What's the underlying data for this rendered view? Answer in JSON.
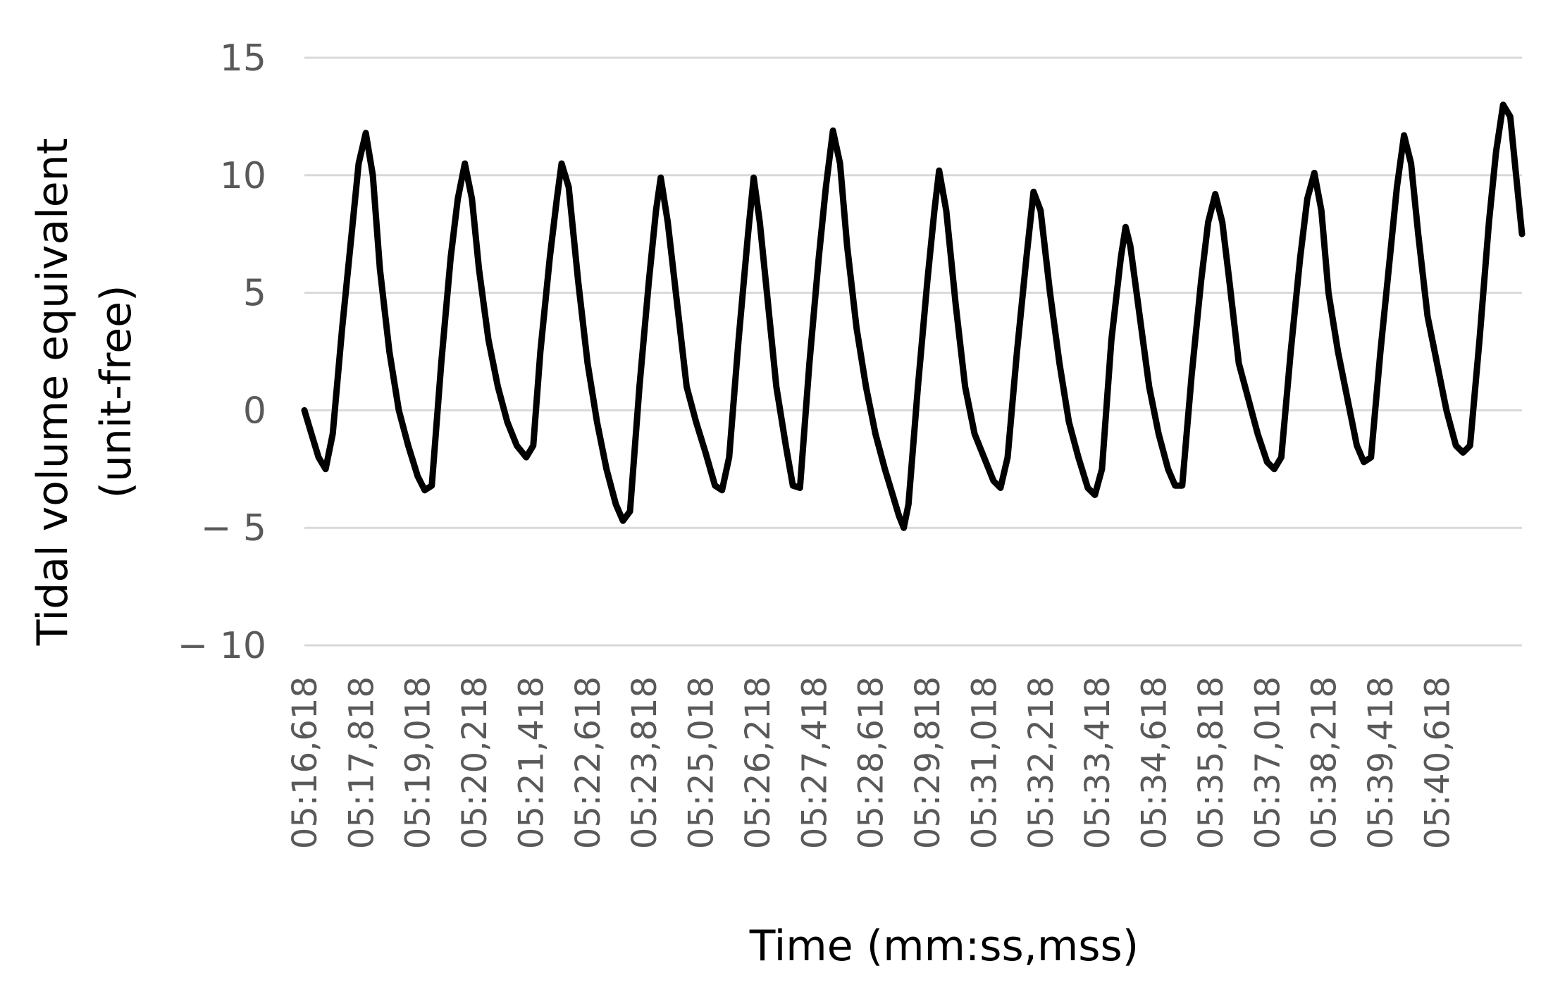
{
  "chart_data": {
    "type": "line",
    "title": "",
    "xlabel": "Time (mm:ss,mss)",
    "ylabel": "Tidal volume equivalent",
    "ylabel_line2": "(unit-free)",
    "ylim": [
      -10,
      15
    ],
    "yticks": [
      15,
      10,
      5,
      0,
      -5,
      -10
    ],
    "ytick_labels": [
      "15",
      "10",
      "5",
      "0",
      "− 5",
      "− 10"
    ],
    "xlim": [
      0,
      25.8
    ],
    "x_categories": [
      "05:16,618",
      "05:17,818",
      "05:19,018",
      "05:20,218",
      "05:21,418",
      "05:22,618",
      "05:23,818",
      "05:25,018",
      "05:26,218",
      "05:27,418",
      "05:28,618",
      "05:29,818",
      "05:31,018",
      "05:32,218",
      "05:33,418",
      "05:34,618",
      "05:35,818",
      "05:37,018",
      "05:38,218",
      "05:39,418",
      "05:40,618"
    ],
    "x_category_step": 1.2,
    "grid": true,
    "line_color": "#000000",
    "grid_color": "#d9d9d9",
    "series": [
      {
        "name": "",
        "points": [
          [
            0.0,
            0
          ],
          [
            0.15,
            -1.0
          ],
          [
            0.3,
            -2.0
          ],
          [
            0.45,
            -2.5
          ],
          [
            0.6,
            -1.0
          ],
          [
            0.8,
            3.5
          ],
          [
            1.0,
            7.5
          ],
          [
            1.15,
            10.5
          ],
          [
            1.3,
            11.8
          ],
          [
            1.45,
            10.0
          ],
          [
            1.6,
            6.0
          ],
          [
            1.8,
            2.5
          ],
          [
            2.0,
            0.0
          ],
          [
            2.2,
            -1.5
          ],
          [
            2.4,
            -2.8
          ],
          [
            2.55,
            -3.4
          ],
          [
            2.7,
            -3.2
          ],
          [
            2.9,
            2.0
          ],
          [
            3.1,
            6.5
          ],
          [
            3.25,
            9.0
          ],
          [
            3.4,
            10.5
          ],
          [
            3.55,
            9.0
          ],
          [
            3.7,
            6.0
          ],
          [
            3.9,
            3.0
          ],
          [
            4.1,
            1.0
          ],
          [
            4.3,
            -0.5
          ],
          [
            4.5,
            -1.5
          ],
          [
            4.7,
            -2.0
          ],
          [
            4.85,
            -1.5
          ],
          [
            5.0,
            2.5
          ],
          [
            5.2,
            6.5
          ],
          [
            5.35,
            9.0
          ],
          [
            5.45,
            10.5
          ],
          [
            5.6,
            9.5
          ],
          [
            5.8,
            5.5
          ],
          [
            6.0,
            2.0
          ],
          [
            6.2,
            -0.5
          ],
          [
            6.4,
            -2.5
          ],
          [
            6.6,
            -4.0
          ],
          [
            6.75,
            -4.7
          ],
          [
            6.9,
            -4.3
          ],
          [
            7.1,
            1.0
          ],
          [
            7.3,
            5.5
          ],
          [
            7.45,
            8.5
          ],
          [
            7.55,
            9.9
          ],
          [
            7.7,
            8.0
          ],
          [
            7.9,
            4.5
          ],
          [
            8.1,
            1.0
          ],
          [
            8.3,
            -0.5
          ],
          [
            8.5,
            -1.8
          ],
          [
            8.7,
            -3.2
          ],
          [
            8.85,
            -3.4
          ],
          [
            9.0,
            -2.0
          ],
          [
            9.2,
            3.0
          ],
          [
            9.4,
            7.5
          ],
          [
            9.52,
            9.9
          ],
          [
            9.65,
            8.0
          ],
          [
            9.8,
            5.0
          ],
          [
            10.0,
            1.0
          ],
          [
            10.2,
            -1.5
          ],
          [
            10.35,
            -3.2
          ],
          [
            10.5,
            -3.3
          ],
          [
            10.7,
            2.0
          ],
          [
            10.9,
            6.5
          ],
          [
            11.05,
            9.5
          ],
          [
            11.2,
            11.9
          ],
          [
            11.35,
            10.5
          ],
          [
            11.5,
            7.0
          ],
          [
            11.7,
            3.5
          ],
          [
            11.9,
            1.0
          ],
          [
            12.1,
            -1.0
          ],
          [
            12.3,
            -2.5
          ],
          [
            12.45,
            -3.5
          ],
          [
            12.6,
            -4.5
          ],
          [
            12.7,
            -5.0
          ],
          [
            12.8,
            -4.0
          ],
          [
            13.0,
            1.0
          ],
          [
            13.2,
            5.5
          ],
          [
            13.35,
            8.5
          ],
          [
            13.45,
            10.2
          ],
          [
            13.6,
            8.5
          ],
          [
            13.8,
            4.5
          ],
          [
            14.0,
            1.0
          ],
          [
            14.2,
            -1.0
          ],
          [
            14.4,
            -2.0
          ],
          [
            14.6,
            -3.0
          ],
          [
            14.75,
            -3.3
          ],
          [
            14.9,
            -2.0
          ],
          [
            15.1,
            2.5
          ],
          [
            15.3,
            6.5
          ],
          [
            15.45,
            9.3
          ],
          [
            15.6,
            8.5
          ],
          [
            15.8,
            5.0
          ],
          [
            16.0,
            2.0
          ],
          [
            16.2,
            -0.5
          ],
          [
            16.4,
            -2.0
          ],
          [
            16.6,
            -3.3
          ],
          [
            16.75,
            -3.6
          ],
          [
            16.9,
            -2.5
          ],
          [
            17.1,
            3.0
          ],
          [
            17.3,
            6.5
          ],
          [
            17.4,
            7.8
          ],
          [
            17.5,
            7.0
          ],
          [
            17.7,
            4.0
          ],
          [
            17.9,
            1.0
          ],
          [
            18.1,
            -1.0
          ],
          [
            18.3,
            -2.5
          ],
          [
            18.45,
            -3.2
          ],
          [
            18.6,
            -3.2
          ],
          [
            18.8,
            1.5
          ],
          [
            19.0,
            5.5
          ],
          [
            19.15,
            8.0
          ],
          [
            19.3,
            9.2
          ],
          [
            19.45,
            8.0
          ],
          [
            19.6,
            5.5
          ],
          [
            19.8,
            2.0
          ],
          [
            20.0,
            0.5
          ],
          [
            20.2,
            -1.0
          ],
          [
            20.4,
            -2.2
          ],
          [
            20.55,
            -2.5
          ],
          [
            20.7,
            -2.0
          ],
          [
            20.9,
            2.5
          ],
          [
            21.1,
            6.5
          ],
          [
            21.25,
            9.0
          ],
          [
            21.4,
            10.1
          ],
          [
            21.55,
            8.5
          ],
          [
            21.7,
            5.0
          ],
          [
            21.9,
            2.5
          ],
          [
            22.1,
            0.5
          ],
          [
            22.3,
            -1.5
          ],
          [
            22.45,
            -2.2
          ],
          [
            22.6,
            -2.0
          ],
          [
            22.8,
            2.5
          ],
          [
            23.0,
            6.5
          ],
          [
            23.15,
            9.5
          ],
          [
            23.3,
            11.7
          ],
          [
            23.45,
            10.5
          ],
          [
            23.6,
            7.5
          ],
          [
            23.8,
            4.0
          ],
          [
            24.0,
            2.0
          ],
          [
            24.2,
            0.0
          ],
          [
            24.4,
            -1.5
          ],
          [
            24.55,
            -1.8
          ],
          [
            24.7,
            -1.5
          ],
          [
            24.9,
            3.0
          ],
          [
            25.1,
            8.0
          ],
          [
            25.25,
            11.0
          ],
          [
            25.4,
            13.0
          ],
          [
            25.55,
            12.5
          ],
          [
            25.7,
            9.5
          ],
          [
            25.85,
            6.5
          ],
          [
            26.0,
            4.0
          ],
          [
            26.2,
            2.5
          ],
          [
            26.4,
            1.5
          ],
          [
            26.6,
            0.5
          ],
          [
            26.75,
            0.0
          ]
        ]
      }
    ]
  }
}
